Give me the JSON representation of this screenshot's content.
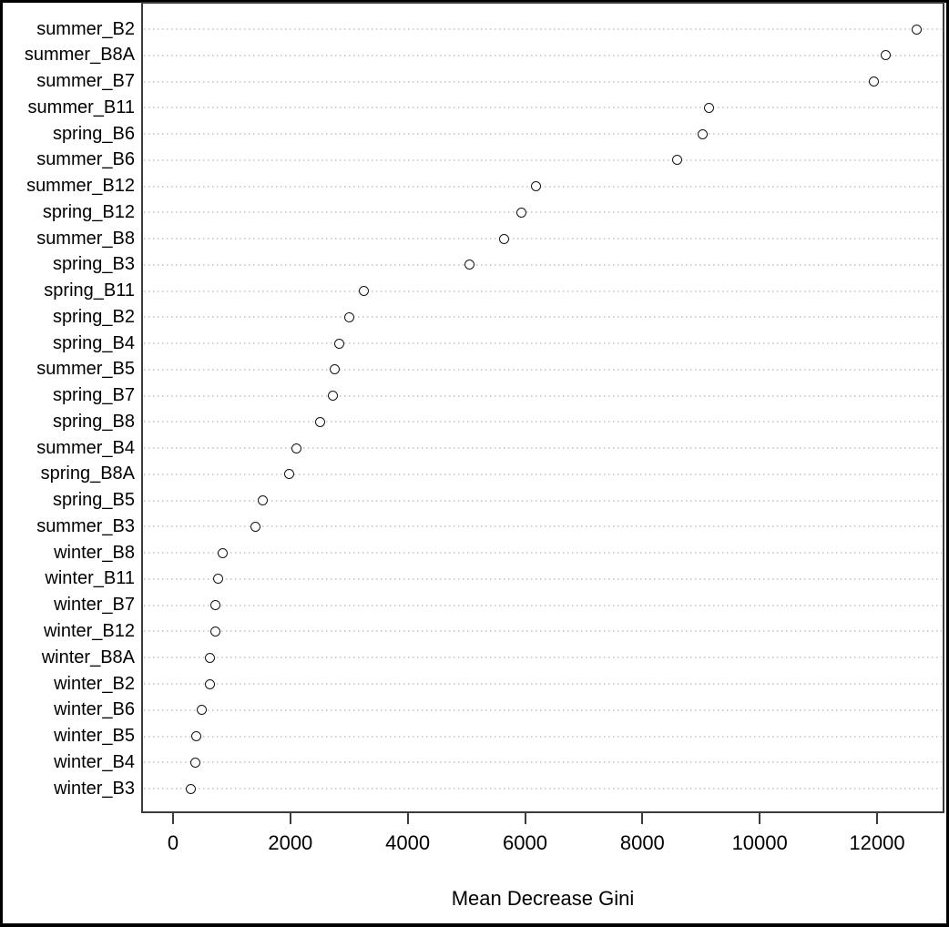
{
  "chart_data": {
    "type": "scatter",
    "variant": "dot-chart",
    "orientation": "horizontal",
    "title": "",
    "xlabel": "Mean Decrease Gini",
    "ylabel": "",
    "x_ticks": [
      0,
      2000,
      4000,
      6000,
      8000,
      10000,
      12000
    ],
    "x_tick_labels": [
      "0",
      "2000",
      "4000",
      "6000",
      "8000",
      "10000",
      "12000"
    ],
    "xlim": [
      -500,
      13150
    ],
    "grid": "horizontal dotted",
    "legend": "none",
    "categories": [
      "summer_B2",
      "summer_B8A",
      "summer_B7",
      "summer_B11",
      "spring_B6",
      "summer_B6",
      "summer_B12",
      "spring_B12",
      "summer_B8",
      "spring_B3",
      "spring_B11",
      "spring_B2",
      "spring_B4",
      "summer_B5",
      "spring_B7",
      "spring_B8",
      "summer_B4",
      "spring_B8A",
      "spring_B5",
      "summer_B3",
      "winter_B8",
      "winter_B11",
      "winter_B7",
      "winter_B12",
      "winter_B8A",
      "winter_B2",
      "winter_B6",
      "winter_B5",
      "winter_B4",
      "winter_B3"
    ],
    "values": [
      12670,
      12150,
      11950,
      9130,
      9030,
      8590,
      6190,
      5940,
      5640,
      5050,
      3260,
      3000,
      2840,
      2750,
      2720,
      2500,
      2100,
      1980,
      1530,
      1410,
      845,
      775,
      725,
      720,
      635,
      630,
      490,
      390,
      385,
      300
    ],
    "point_style": {
      "shape": "open-circle",
      "fill": "#ffffff",
      "stroke": "#151515",
      "radius_px": 5.5
    },
    "colors": {
      "frame": "#3b3b3b",
      "gridline": "#d0d0d0",
      "text": "#000000",
      "background": "#ffffff",
      "figure_border": "#000000"
    }
  }
}
